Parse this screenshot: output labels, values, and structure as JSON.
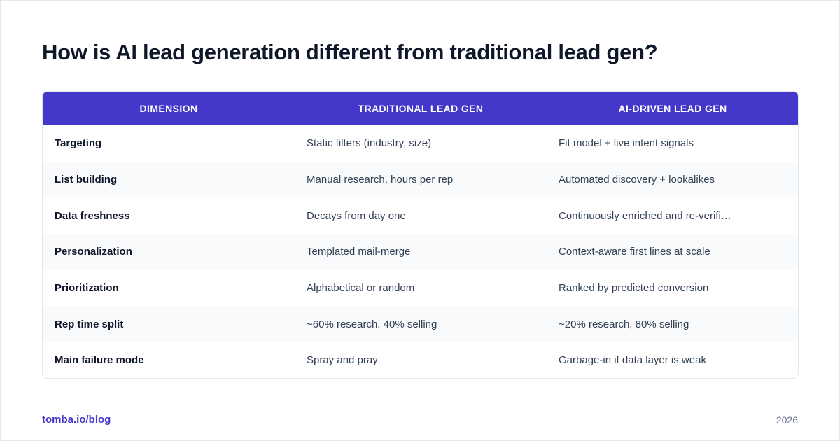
{
  "title": "How is AI lead generation different from traditional lead gen?",
  "table": {
    "headers": [
      "DIMENSION",
      "TRADITIONAL LEAD GEN",
      "AI-DRIVEN LEAD GEN"
    ],
    "rows": [
      {
        "dimension": "Targeting",
        "traditional": "Static filters (industry, size)",
        "ai": "Fit model + live intent signals"
      },
      {
        "dimension": "List building",
        "traditional": "Manual research, hours per rep",
        "ai": "Automated discovery + lookalikes"
      },
      {
        "dimension": "Data freshness",
        "traditional": "Decays from day one",
        "ai": "Continuously enriched and re-verifi…"
      },
      {
        "dimension": "Personalization",
        "traditional": "Templated mail-merge",
        "ai": "Context-aware first lines at scale"
      },
      {
        "dimension": "Prioritization",
        "traditional": "Alphabetical or random",
        "ai": "Ranked by predicted conversion"
      },
      {
        "dimension": "Rep time split",
        "traditional": "~60% research, 40% selling",
        "ai": "~20% research, 80% selling"
      },
      {
        "dimension": "Main failure mode",
        "traditional": "Spray and pray",
        "ai": "Garbage-in if data layer is weak"
      }
    ]
  },
  "footer": {
    "link": "tomba.io/blog",
    "year": "2026"
  },
  "colors": {
    "header_bg": "#4338ca",
    "link": "#4338ca",
    "title": "#0f172a"
  }
}
